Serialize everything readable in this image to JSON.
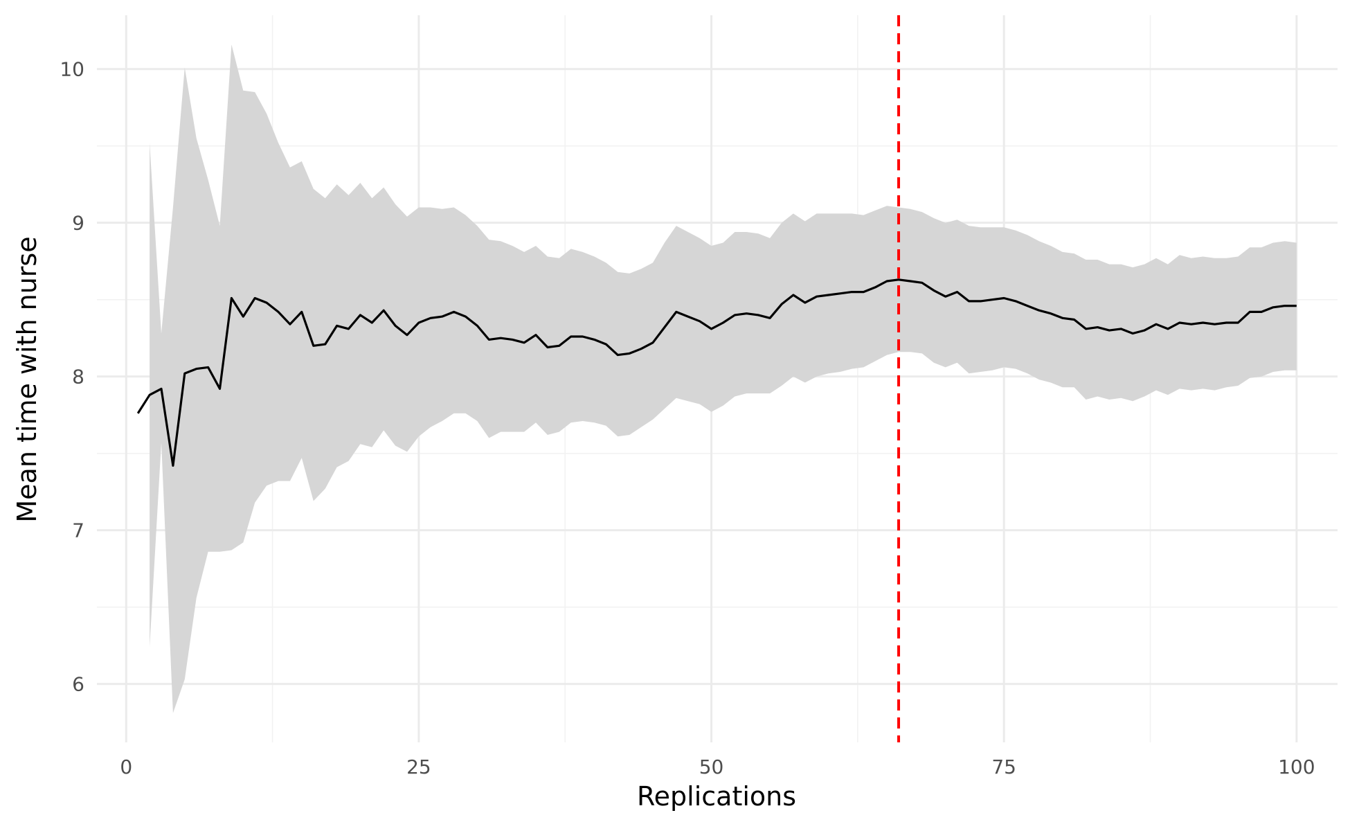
{
  "chart_data": {
    "type": "line",
    "xlabel": "Replications",
    "ylabel": "Mean time with nurse",
    "xlim": [
      -2.5,
      103.5
    ],
    "ylim": [
      5.62,
      10.35
    ],
    "x_ticks": [
      0,
      25,
      50,
      75,
      100
    ],
    "y_ticks": [
      6,
      7,
      8,
      9,
      10
    ],
    "x_minor": [
      12.5,
      37.5,
      62.5,
      87.5
    ],
    "y_minor": [
      6.5,
      7.5,
      8.5,
      9.5
    ],
    "grid": true,
    "legend": "none",
    "colors": {
      "line": "#000000",
      "band": "#d6d6d6",
      "vline": "#ff0000"
    },
    "vline": {
      "x": 66,
      "style": "dashed"
    },
    "series": [
      {
        "type": "line",
        "x": [
          1,
          2,
          3,
          4,
          5,
          6,
          7,
          8,
          9,
          10,
          11,
          12,
          13,
          14,
          15,
          16,
          17,
          18,
          19,
          20,
          21,
          22,
          23,
          24,
          25,
          26,
          27,
          28,
          29,
          30,
          31,
          32,
          33,
          34,
          35,
          36,
          37,
          38,
          39,
          40,
          41,
          42,
          43,
          44,
          45,
          46,
          47,
          48,
          49,
          50,
          51,
          52,
          53,
          54,
          55,
          56,
          57,
          58,
          59,
          60,
          61,
          62,
          63,
          64,
          65,
          66,
          67,
          68,
          69,
          70,
          71,
          72,
          73,
          74,
          75,
          76,
          77,
          78,
          79,
          80,
          81,
          82,
          83,
          84,
          85,
          86,
          87,
          88,
          89,
          90,
          91,
          92,
          93,
          94,
          95,
          96,
          97,
          98,
          99,
          100
        ],
        "y": [
          7.76,
          7.88,
          7.92,
          7.42,
          8.02,
          8.05,
          8.06,
          7.92,
          8.51,
          8.39,
          8.51,
          8.48,
          8.42,
          8.34,
          8.42,
          8.2,
          8.21,
          8.33,
          8.31,
          8.4,
          8.35,
          8.43,
          8.33,
          8.27,
          8.35,
          8.38,
          8.39,
          8.42,
          8.39,
          8.33,
          8.24,
          8.25,
          8.24,
          8.22,
          8.27,
          8.19,
          8.2,
          8.26,
          8.26,
          8.24,
          8.21,
          8.14,
          8.15,
          8.18,
          8.22,
          8.32,
          8.42,
          8.39,
          8.36,
          8.31,
          8.35,
          8.4,
          8.41,
          8.4,
          8.38,
          8.47,
          8.53,
          8.48,
          8.52,
          8.53,
          8.54,
          8.55,
          8.55,
          8.58,
          8.62,
          8.63,
          8.62,
          8.61,
          8.56,
          8.52,
          8.55,
          8.49,
          8.49,
          8.5,
          8.51,
          8.49,
          8.46,
          8.43,
          8.41,
          8.38,
          8.37,
          8.31,
          8.32,
          8.3,
          8.31,
          8.28,
          8.3,
          8.34,
          8.31,
          8.35,
          8.34,
          8.35,
          8.34,
          8.35,
          8.35,
          8.42,
          8.42,
          8.45,
          8.46,
          8.46
        ]
      },
      {
        "type": "area",
        "x": [
          2,
          3,
          4,
          5,
          6,
          7,
          8,
          9,
          10,
          11,
          12,
          13,
          14,
          15,
          16,
          17,
          18,
          19,
          20,
          21,
          22,
          23,
          24,
          25,
          26,
          27,
          28,
          29,
          30,
          31,
          32,
          33,
          34,
          35,
          36,
          37,
          38,
          39,
          40,
          41,
          42,
          43,
          44,
          45,
          46,
          47,
          48,
          49,
          50,
          51,
          52,
          53,
          54,
          55,
          56,
          57,
          58,
          59,
          60,
          61,
          62,
          63,
          64,
          65,
          66,
          67,
          68,
          69,
          70,
          71,
          72,
          73,
          74,
          75,
          76,
          77,
          78,
          79,
          80,
          81,
          82,
          83,
          84,
          85,
          86,
          87,
          88,
          89,
          90,
          91,
          92,
          93,
          94,
          95,
          96,
          97,
          98,
          99,
          100
        ],
        "upper": [
          9.52,
          8.28,
          9.1,
          10.01,
          9.55,
          9.28,
          8.98,
          10.16,
          9.86,
          9.85,
          9.71,
          9.52,
          9.36,
          9.4,
          9.22,
          9.16,
          9.25,
          9.18,
          9.26,
          9.16,
          9.23,
          9.12,
          9.04,
          9.1,
          9.1,
          9.09,
          9.1,
          9.05,
          8.98,
          8.89,
          8.88,
          8.85,
          8.81,
          8.85,
          8.78,
          8.77,
          8.83,
          8.81,
          8.78,
          8.74,
          8.68,
          8.67,
          8.7,
          8.74,
          8.87,
          8.98,
          8.94,
          8.9,
          8.85,
          8.87,
          8.94,
          8.94,
          8.93,
          8.9,
          9.0,
          9.06,
          9.01,
          9.06,
          9.06,
          9.06,
          9.06,
          9.05,
          9.08,
          9.11,
          9.1,
          9.09,
          9.07,
          9.03,
          9.0,
          9.02,
          8.98,
          8.97,
          8.97,
          8.97,
          8.95,
          8.92,
          8.88,
          8.85,
          8.81,
          8.8,
          8.76,
          8.76,
          8.73,
          8.73,
          8.71,
          8.73,
          8.77,
          8.73,
          8.79,
          8.77,
          8.78,
          8.77,
          8.77,
          8.78,
          8.84,
          8.84,
          8.87,
          8.88,
          8.87
        ],
        "lower": [
          6.24,
          7.57,
          5.81,
          6.03,
          6.56,
          6.86,
          6.86,
          6.87,
          6.92,
          7.18,
          7.29,
          7.32,
          7.32,
          7.47,
          7.19,
          7.27,
          7.41,
          7.45,
          7.56,
          7.54,
          7.65,
          7.55,
          7.51,
          7.61,
          7.67,
          7.71,
          7.76,
          7.76,
          7.71,
          7.6,
          7.64,
          7.64,
          7.64,
          7.7,
          7.62,
          7.64,
          7.7,
          7.71,
          7.7,
          7.68,
          7.61,
          7.62,
          7.67,
          7.72,
          7.79,
          7.86,
          7.84,
          7.82,
          7.77,
          7.81,
          7.87,
          7.89,
          7.89,
          7.89,
          7.94,
          8.0,
          7.96,
          8.0,
          8.02,
          8.03,
          8.05,
          8.06,
          8.1,
          8.14,
          8.16,
          8.16,
          8.15,
          8.09,
          8.06,
          8.09,
          8.02,
          8.03,
          8.04,
          8.06,
          8.05,
          8.02,
          7.98,
          7.96,
          7.93,
          7.93,
          7.85,
          7.87,
          7.85,
          7.86,
          7.84,
          7.87,
          7.91,
          7.88,
          7.92,
          7.91,
          7.92,
          7.91,
          7.93,
          7.94,
          7.99,
          8.0,
          8.03,
          8.04,
          8.04
        ]
      }
    ]
  }
}
